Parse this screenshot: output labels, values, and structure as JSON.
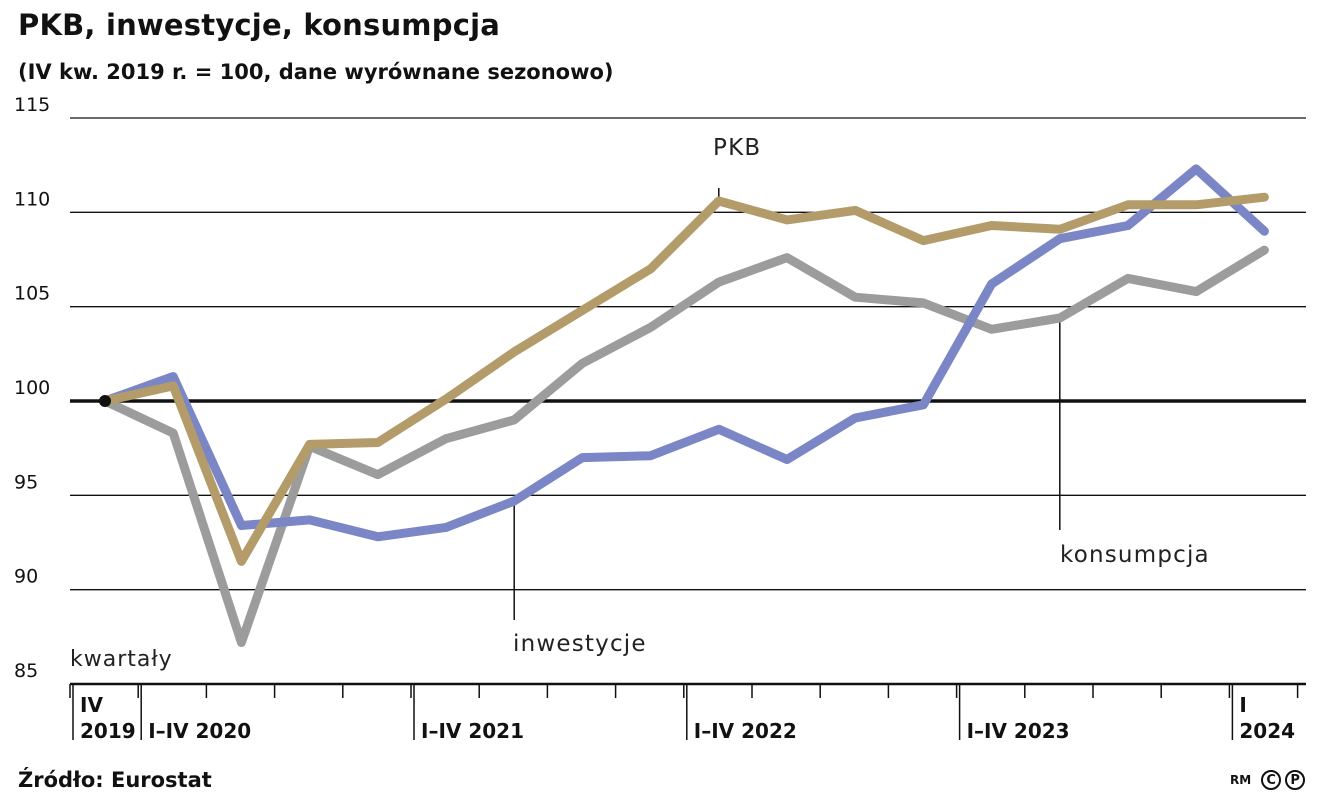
{
  "title": "PKB, inwestycje, konsumpcja",
  "subtitle": "(IV kw. 2019 r. = 100, dane wyrównane sezonowo)",
  "source": "Źródło: Eurostat",
  "credit": {
    "rm": "RM",
    "c": "C",
    "p": "P"
  },
  "chart_data": {
    "type": "line",
    "y_ticks": [
      "115",
      "110",
      "105",
      "100",
      "95",
      "90",
      "85"
    ],
    "ylim": [
      85,
      115
    ],
    "x_count": 18,
    "x_axis_label": "kwartały",
    "x_group_labels": [
      {
        "line1": "IV",
        "line2": "2019"
      },
      {
        "line1": "",
        "line2": "I–IV 2020"
      },
      {
        "line1": "",
        "line2": "I–IV 2021"
      },
      {
        "line1": "",
        "line2": "I–IV 2022"
      },
      {
        "line1": "",
        "line2": "I–IV 2023"
      },
      {
        "line1": "I",
        "line2": "2024"
      }
    ],
    "colors": {
      "PKB": "#B49C6A",
      "inwestycje": "#7A86C6",
      "konsumpcja": "#9C9C9C"
    },
    "series": [
      {
        "name": "konsumpcja",
        "values": [
          100,
          98.3,
          87.2,
          97.6,
          96.1,
          98,
          99,
          102,
          103.9,
          106.3,
          107.6,
          105.5,
          105.2,
          103.8,
          104.4,
          106.5,
          105.8,
          108
        ]
      },
      {
        "name": "inwestycje",
        "values": [
          100,
          101.3,
          93.4,
          93.7,
          92.8,
          93.3,
          94.7,
          97,
          97.1,
          98.5,
          96.9,
          99.1,
          99.8,
          106.2,
          108.6,
          109.3,
          112.3,
          109
        ]
      },
      {
        "name": "PKB",
        "values": [
          100,
          100.8,
          91.5,
          97.7,
          97.8,
          100.1,
          102.6,
          104.8,
          107,
          110.6,
          109.6,
          110.1,
          108.5,
          109.3,
          109.1,
          110.4,
          110.4,
          110.8
        ]
      }
    ]
  }
}
